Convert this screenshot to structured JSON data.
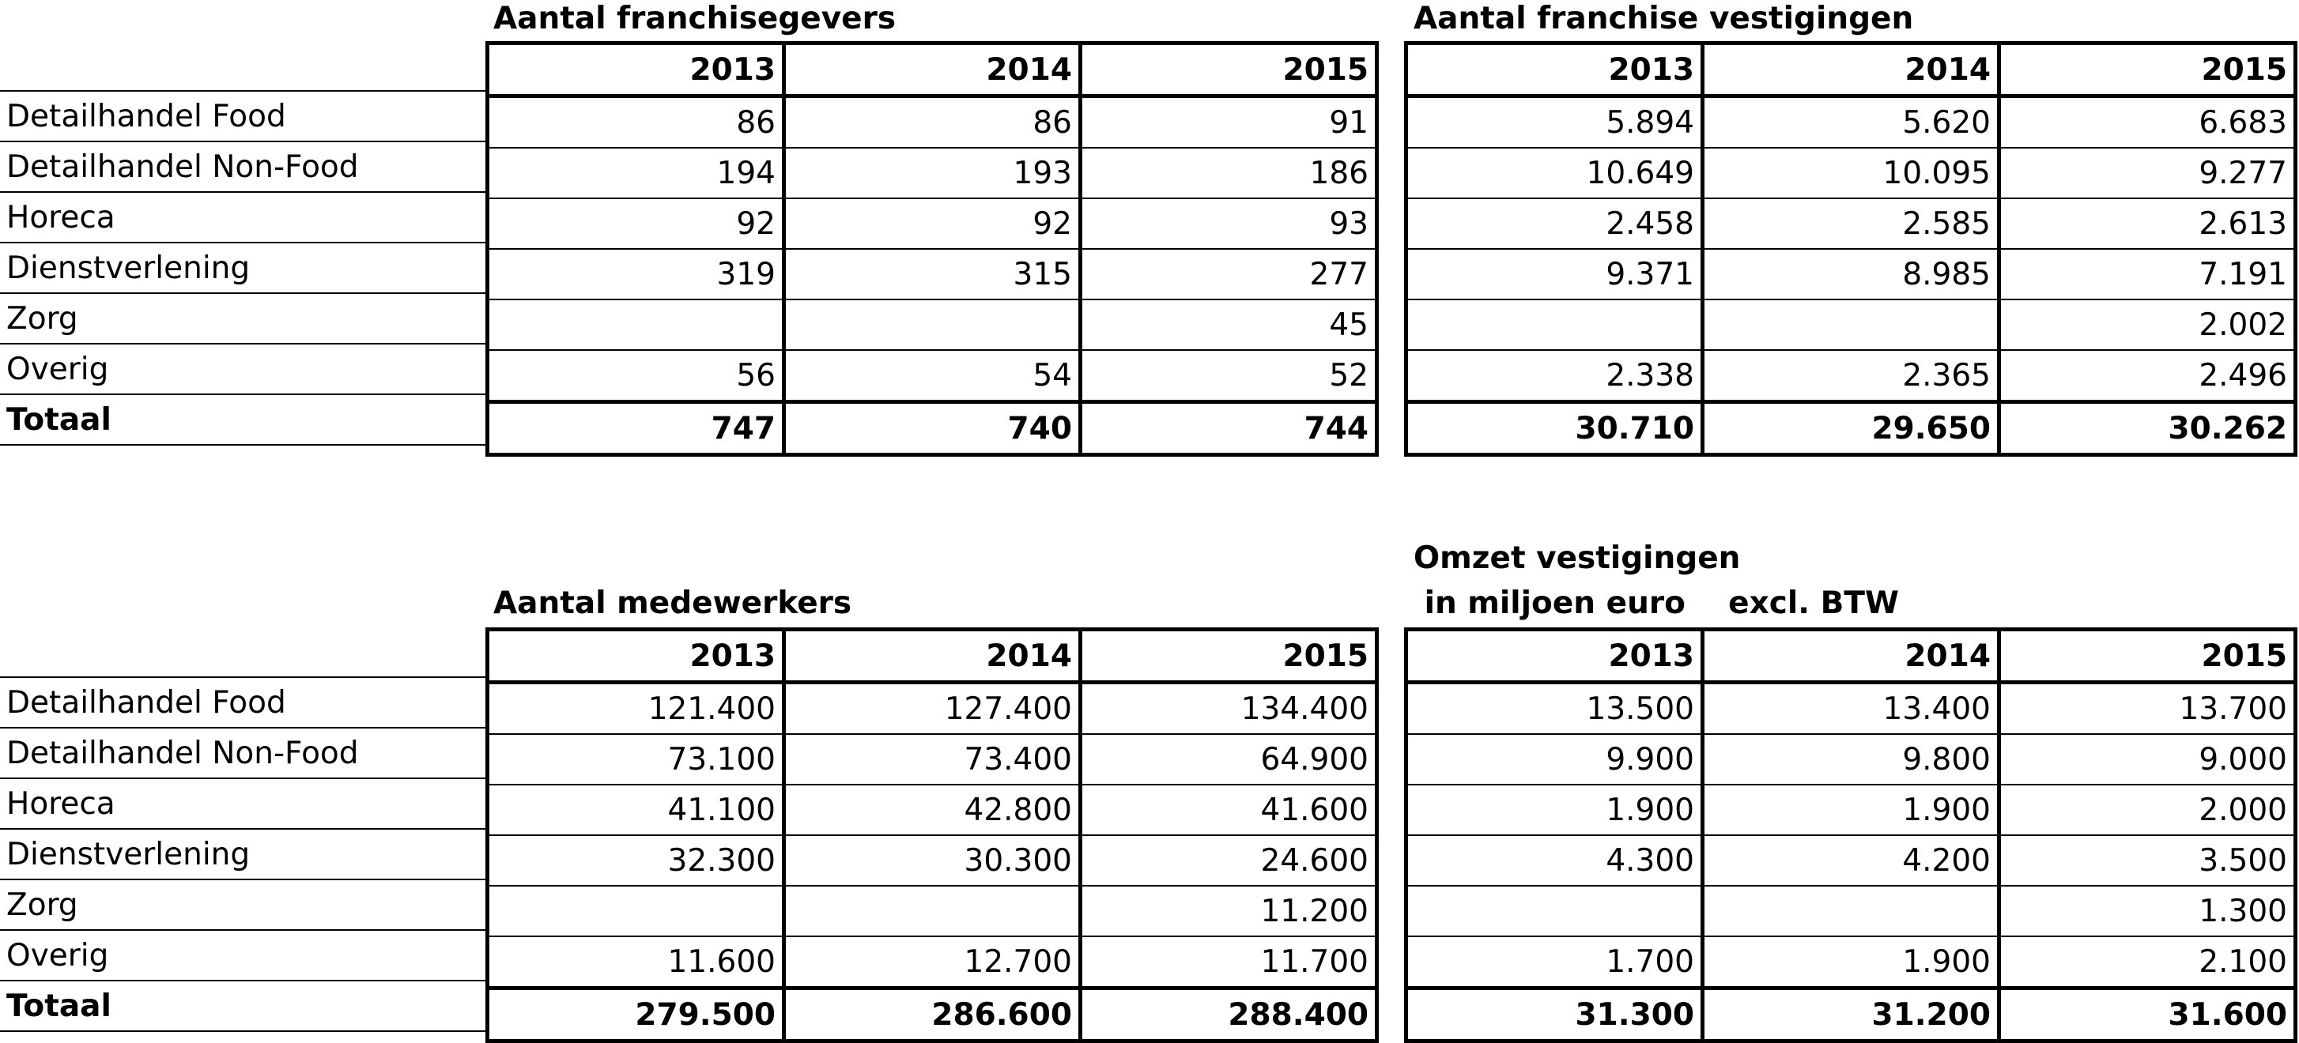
{
  "tables": [
    {
      "title": "Aantal franchisegevers",
      "years": [
        "2013",
        "2014",
        "2015"
      ],
      "rows": [
        {
          "label": "Detailhandel Food",
          "values": [
            "86",
            "86",
            "91"
          ]
        },
        {
          "label": "Detailhandel Non-Food",
          "values": [
            "194",
            "193",
            "186"
          ]
        },
        {
          "label": "Horeca",
          "values": [
            "92",
            "92",
            "93"
          ]
        },
        {
          "label": "Dienstverlening",
          "values": [
            "319",
            "315",
            "277"
          ]
        },
        {
          "label": "Zorg",
          "values": [
            "",
            "",
            "45"
          ]
        },
        {
          "label": "Overig",
          "values": [
            "56",
            "54",
            "52"
          ]
        },
        {
          "label": "Totaal",
          "values": [
            "747",
            "740",
            "744"
          ]
        }
      ]
    },
    {
      "title": "Aantal franchise vestigingen",
      "years": [
        "2013",
        "2014",
        "2015"
      ],
      "rows": [
        {
          "label": "Detailhandel Food",
          "values": [
            "5.894",
            "5.620",
            "6.683"
          ]
        },
        {
          "label": "Detailhandel Non-Food",
          "values": [
            "10.649",
            "10.095",
            "9.277"
          ]
        },
        {
          "label": "Horeca",
          "values": [
            "2.458",
            "2.585",
            "2.613"
          ]
        },
        {
          "label": "Dienstverlening",
          "values": [
            "9.371",
            "8.985",
            "7.191"
          ]
        },
        {
          "label": "Zorg",
          "values": [
            "",
            "",
            "2.002"
          ]
        },
        {
          "label": "Overig",
          "values": [
            "2.338",
            "2.365",
            "2.496"
          ]
        },
        {
          "label": "Totaal",
          "values": [
            "30.710",
            "29.650",
            "30.262"
          ]
        }
      ]
    },
    {
      "title": "Aantal medewerkers",
      "years": [
        "2013",
        "2014",
        "2015"
      ],
      "rows": [
        {
          "label": "Detailhandel Food",
          "values": [
            "121.400",
            "127.400",
            "134.400"
          ]
        },
        {
          "label": "Detailhandel Non-Food",
          "values": [
            "73.100",
            "73.400",
            "64.900"
          ]
        },
        {
          "label": "Horeca",
          "values": [
            "41.100",
            "42.800",
            "41.600"
          ]
        },
        {
          "label": "Dienstverlening",
          "values": [
            "32.300",
            "30.300",
            "24.600"
          ]
        },
        {
          "label": "Zorg",
          "values": [
            "",
            "",
            "11.200"
          ]
        },
        {
          "label": "Overig",
          "values": [
            "11.600",
            "12.700",
            "11.700"
          ]
        },
        {
          "label": "Totaal",
          "values": [
            "279.500",
            "286.600",
            "288.400"
          ]
        }
      ]
    },
    {
      "title": "Omzet vestigingen",
      "subtitle": " in miljoen euro    excl. BTW",
      "years": [
        "2013",
        "2014",
        "2015"
      ],
      "rows": [
        {
          "label": "Detailhandel Food",
          "values": [
            "13.500",
            "13.400",
            "13.700"
          ]
        },
        {
          "label": "Detailhandel Non-Food",
          "values": [
            "9.900",
            "9.800",
            "9.000"
          ]
        },
        {
          "label": "Horeca",
          "values": [
            "1.900",
            "1.900",
            "2.000"
          ]
        },
        {
          "label": "Dienstverlening",
          "values": [
            "4.300",
            "4.200",
            "3.500"
          ]
        },
        {
          "label": "Zorg",
          "values": [
            "",
            "",
            "1.300"
          ]
        },
        {
          "label": "Overig",
          "values": [
            "1.700",
            "1.900",
            "2.100"
          ]
        },
        {
          "label": "Totaal",
          "values": [
            "31.300",
            "31.200",
            "31.600"
          ]
        }
      ]
    }
  ]
}
